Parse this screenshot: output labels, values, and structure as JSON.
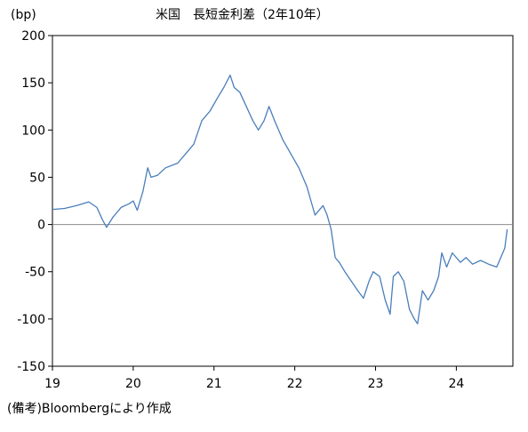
{
  "chart_data": {
    "type": "line",
    "title": "米国　長短金利差（2年10年）",
    "unit_label": "(bp)",
    "xlabel": "",
    "ylabel": "",
    "x_tick_labels": [
      "19",
      "20",
      "21",
      "22",
      "23",
      "24"
    ],
    "y_ticks": [
      200,
      150,
      100,
      50,
      0,
      -50,
      -100,
      -150
    ],
    "ylim": [
      -150,
      200
    ],
    "xlim": [
      2019.0,
      2024.7
    ],
    "grid": false,
    "zero_line": true,
    "series": [
      {
        "name": "",
        "color": "#4a7ebb",
        "x": [
          2019.0,
          2019.15,
          2019.3,
          2019.45,
          2019.55,
          2019.62,
          2019.67,
          2019.75,
          2019.85,
          2019.95,
          2020.0,
          2020.05,
          2020.12,
          2020.18,
          2020.22,
          2020.3,
          2020.4,
          2020.55,
          2020.65,
          2020.75,
          2020.85,
          2020.95,
          2021.05,
          2021.12,
          2021.2,
          2021.25,
          2021.32,
          2021.4,
          2021.48,
          2021.55,
          2021.62,
          2021.68,
          2021.75,
          2021.85,
          2021.95,
          2022.05,
          2022.15,
          2022.2,
          2022.25,
          2022.35,
          2022.4,
          2022.45,
          2022.5,
          2022.55,
          2022.62,
          2022.7,
          2022.78,
          2022.85,
          2022.92,
          2022.97,
          2023.05,
          2023.12,
          2023.18,
          2023.22,
          2023.28,
          2023.35,
          2023.42,
          2023.48,
          2023.52,
          2023.58,
          2023.65,
          2023.72,
          2023.78,
          2023.82,
          2023.88,
          2023.95,
          2024.05,
          2024.12,
          2024.2,
          2024.3,
          2024.4,
          2024.5,
          2024.55,
          2024.6,
          2024.63
        ],
        "values": [
          16,
          17,
          20,
          24,
          18,
          5,
          -3,
          8,
          18,
          22,
          25,
          15,
          35,
          60,
          50,
          52,
          60,
          65,
          75,
          85,
          110,
          120,
          135,
          145,
          158,
          145,
          140,
          125,
          110,
          100,
          110,
          125,
          110,
          90,
          75,
          60,
          40,
          25,
          10,
          20,
          10,
          -5,
          -35,
          -40,
          -50,
          -60,
          -70,
          -78,
          -60,
          -50,
          -55,
          -80,
          -95,
          -55,
          -50,
          -60,
          -90,
          -100,
          -105,
          -70,
          -80,
          -70,
          -55,
          -30,
          -45,
          -30,
          -40,
          -35,
          -42,
          -38,
          -42,
          -45,
          -35,
          -25,
          -5
        ]
      }
    ]
  },
  "footnote": "(備考)Bloombergにより作成"
}
